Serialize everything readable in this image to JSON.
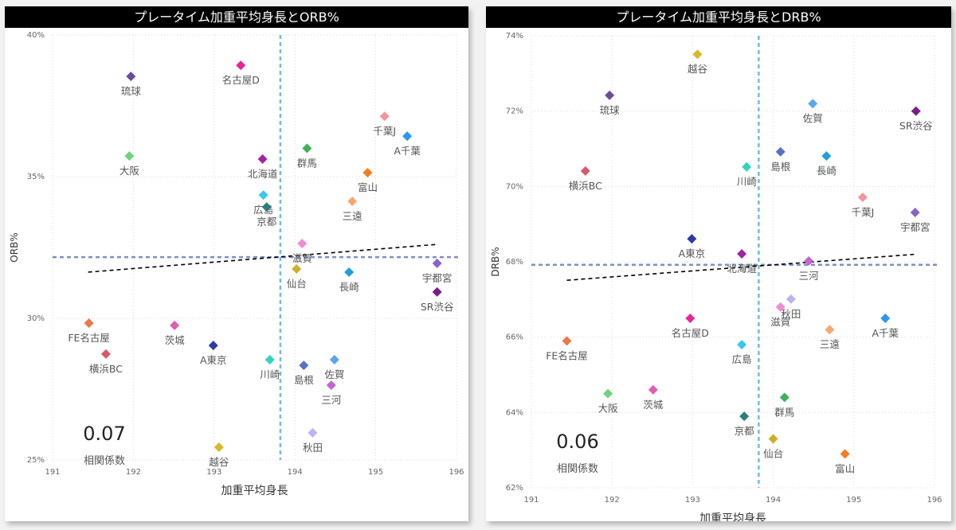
{
  "chart_data": [
    {
      "type": "scatter",
      "title": "プレータイム加重平均身長とORB%",
      "xlabel": "加重平均身長",
      "ylabel": "ORB%",
      "xlim": [
        191,
        196
      ],
      "ylim": [
        25,
        40
      ],
      "x_ticks": [
        "191",
        "192",
        "193",
        "194",
        "195",
        "196"
      ],
      "y_ticks": [
        "25%",
        "30%",
        "35%",
        "40%"
      ],
      "x_tick_values": [
        191,
        192,
        193,
        194,
        195,
        196
      ],
      "y_tick_values": [
        25,
        30,
        35,
        40
      ],
      "grid": true,
      "mean_x": 193.82,
      "mean_y": 32.16,
      "trendline": {
        "x": [
          191.44,
          195.76
        ],
        "y": [
          31.63,
          32.61
        ]
      },
      "correlation": {
        "value": "0.07",
        "label": "相関係数"
      },
      "points": [
        {
          "name": "琉球",
          "x": 191.97,
          "y": 38.54,
          "color": "#6b4c9a"
        },
        {
          "name": "名古屋D",
          "x": 193.33,
          "y": 38.93,
          "color": "#e8259a"
        },
        {
          "name": "大阪",
          "x": 191.95,
          "y": 35.73,
          "color": "#6fd47a"
        },
        {
          "name": "北海道",
          "x": 193.6,
          "y": 35.62,
          "color": "#a0269e"
        },
        {
          "name": "群馬",
          "x": 194.15,
          "y": 36.0,
          "color": "#3bb35a"
        },
        {
          "name": "千葉J",
          "x": 195.11,
          "y": 37.13,
          "color": "#f4959a"
        },
        {
          "name": "A千葉",
          "x": 195.39,
          "y": 36.43,
          "color": "#2d96f0"
        },
        {
          "name": "富山",
          "x": 194.9,
          "y": 35.14,
          "color": "#f57c21"
        },
        {
          "name": "広島",
          "x": 193.61,
          "y": 34.35,
          "color": "#38c8f0"
        },
        {
          "name": "京都",
          "x": 193.65,
          "y": 33.93,
          "color": "#2a7f7c"
        },
        {
          "name": "三遠",
          "x": 194.71,
          "y": 34.13,
          "color": "#f7a872"
        },
        {
          "name": "滋賀",
          "x": 194.09,
          "y": 32.64,
          "color": "#f08bd4"
        },
        {
          "name": "仙台",
          "x": 194.02,
          "y": 31.74,
          "color": "#cdb02a"
        },
        {
          "name": "長崎",
          "x": 194.67,
          "y": 31.63,
          "color": "#1f9fd6"
        },
        {
          "name": "宇都宮",
          "x": 195.76,
          "y": 31.94,
          "color": "#8a63c9"
        },
        {
          "name": "SR渋谷",
          "x": 195.76,
          "y": 30.93,
          "color": "#7a1d8a"
        },
        {
          "name": "FE名古屋",
          "x": 191.45,
          "y": 29.83,
          "color": "#e9784a"
        },
        {
          "name": "横浜BC",
          "x": 191.66,
          "y": 28.74,
          "color": "#d85a6a"
        },
        {
          "name": "茨城",
          "x": 192.51,
          "y": 29.75,
          "color": "#e05db4"
        },
        {
          "name": "A東京",
          "x": 192.99,
          "y": 29.04,
          "color": "#2b3aa6"
        },
        {
          "name": "川崎",
          "x": 193.69,
          "y": 28.54,
          "color": "#2fd6bd"
        },
        {
          "name": "島根",
          "x": 194.11,
          "y": 28.34,
          "color": "#5871c4"
        },
        {
          "name": "佐賀",
          "x": 194.49,
          "y": 28.54,
          "color": "#5aa6f2"
        },
        {
          "name": "三河",
          "x": 194.45,
          "y": 27.64,
          "color": "#c464d2"
        },
        {
          "name": "秋田",
          "x": 194.22,
          "y": 25.96,
          "color": "#c0b0f4"
        },
        {
          "name": "越谷",
          "x": 193.06,
          "y": 25.45,
          "color": "#d9b82a"
        }
      ]
    },
    {
      "type": "scatter",
      "title": "プレータイム加重平均身長とDRB%",
      "xlabel": "加重平均身長",
      "ylabel": "DRB%",
      "xlim": [
        191,
        196
      ],
      "ylim": [
        62,
        74
      ],
      "x_ticks": [
        "191",
        "192",
        "193",
        "194",
        "195",
        "196"
      ],
      "y_ticks": [
        "62%",
        "64%",
        "66%",
        "68%",
        "70%",
        "72%",
        "74%"
      ],
      "x_tick_values": [
        191,
        192,
        193,
        194,
        195,
        196
      ],
      "y_tick_values": [
        62,
        64,
        66,
        68,
        70,
        72,
        74
      ],
      "grid": true,
      "mean_x": 193.82,
      "mean_y": 67.92,
      "trendline": {
        "x": [
          191.44,
          195.76
        ],
        "y": [
          67.51,
          68.2
        ]
      },
      "correlation": {
        "value": "0.06",
        "label": "相関係数"
      },
      "points": [
        {
          "name": "越谷",
          "x": 193.06,
          "y": 73.51,
          "color": "#d9b82a"
        },
        {
          "name": "琉球",
          "x": 191.97,
          "y": 72.42,
          "color": "#6b4c9a"
        },
        {
          "name": "佐賀",
          "x": 194.49,
          "y": 72.2,
          "color": "#5aa6f2"
        },
        {
          "name": "SR渋谷",
          "x": 195.77,
          "y": 72.0,
          "color": "#7a1d8a"
        },
        {
          "name": "島根",
          "x": 194.09,
          "y": 70.92,
          "color": "#5871c4"
        },
        {
          "name": "長崎",
          "x": 194.66,
          "y": 70.81,
          "color": "#1f9fd6"
        },
        {
          "name": "川崎",
          "x": 193.67,
          "y": 70.52,
          "color": "#2fd6bd"
        },
        {
          "name": "横浜BC",
          "x": 191.67,
          "y": 70.41,
          "color": "#d85a6a"
        },
        {
          "name": "千葉J",
          "x": 195.11,
          "y": 69.71,
          "color": "#f4959a"
        },
        {
          "name": "宇都宮",
          "x": 195.76,
          "y": 69.31,
          "color": "#8a63c9"
        },
        {
          "name": "A東京",
          "x": 192.99,
          "y": 68.61,
          "color": "#2b3aa6"
        },
        {
          "name": "北海道",
          "x": 193.61,
          "y": 68.21,
          "color": "#a0269e"
        },
        {
          "name": "三河",
          "x": 194.44,
          "y": 68.02,
          "color": "#c464d2"
        },
        {
          "name": "秋田",
          "x": 194.22,
          "y": 67.01,
          "color": "#c0b0f4"
        },
        {
          "name": "滋賀",
          "x": 194.09,
          "y": 66.8,
          "color": "#f08bd4"
        },
        {
          "name": "名古屋D",
          "x": 192.97,
          "y": 66.5,
          "color": "#e8259a"
        },
        {
          "name": "A千葉",
          "x": 195.39,
          "y": 66.5,
          "color": "#2d96f0"
        },
        {
          "name": "三遠",
          "x": 194.7,
          "y": 66.2,
          "color": "#f7a872"
        },
        {
          "name": "FE名古屋",
          "x": 191.44,
          "y": 65.9,
          "color": "#e9784a"
        },
        {
          "name": "広島",
          "x": 193.61,
          "y": 65.8,
          "color": "#38c8f0"
        },
        {
          "name": "大阪",
          "x": 191.95,
          "y": 64.5,
          "color": "#6fd47a"
        },
        {
          "name": "茨城",
          "x": 192.51,
          "y": 64.6,
          "color": "#e05db4"
        },
        {
          "name": "群馬",
          "x": 194.14,
          "y": 64.4,
          "color": "#3bb35a"
        },
        {
          "name": "京都",
          "x": 193.64,
          "y": 63.9,
          "color": "#2a7f7c"
        },
        {
          "name": "仙台",
          "x": 194.0,
          "y": 63.3,
          "color": "#cdb02a"
        },
        {
          "name": "富山",
          "x": 194.89,
          "y": 62.9,
          "color": "#f57c21"
        }
      ]
    }
  ],
  "colors": {
    "title_bar": "#000000",
    "mean_horizontal": "#7f8fc6",
    "mean_vertical": "#6bbcf0",
    "trendline": "#000000",
    "grid": "#d9d9d9"
  }
}
